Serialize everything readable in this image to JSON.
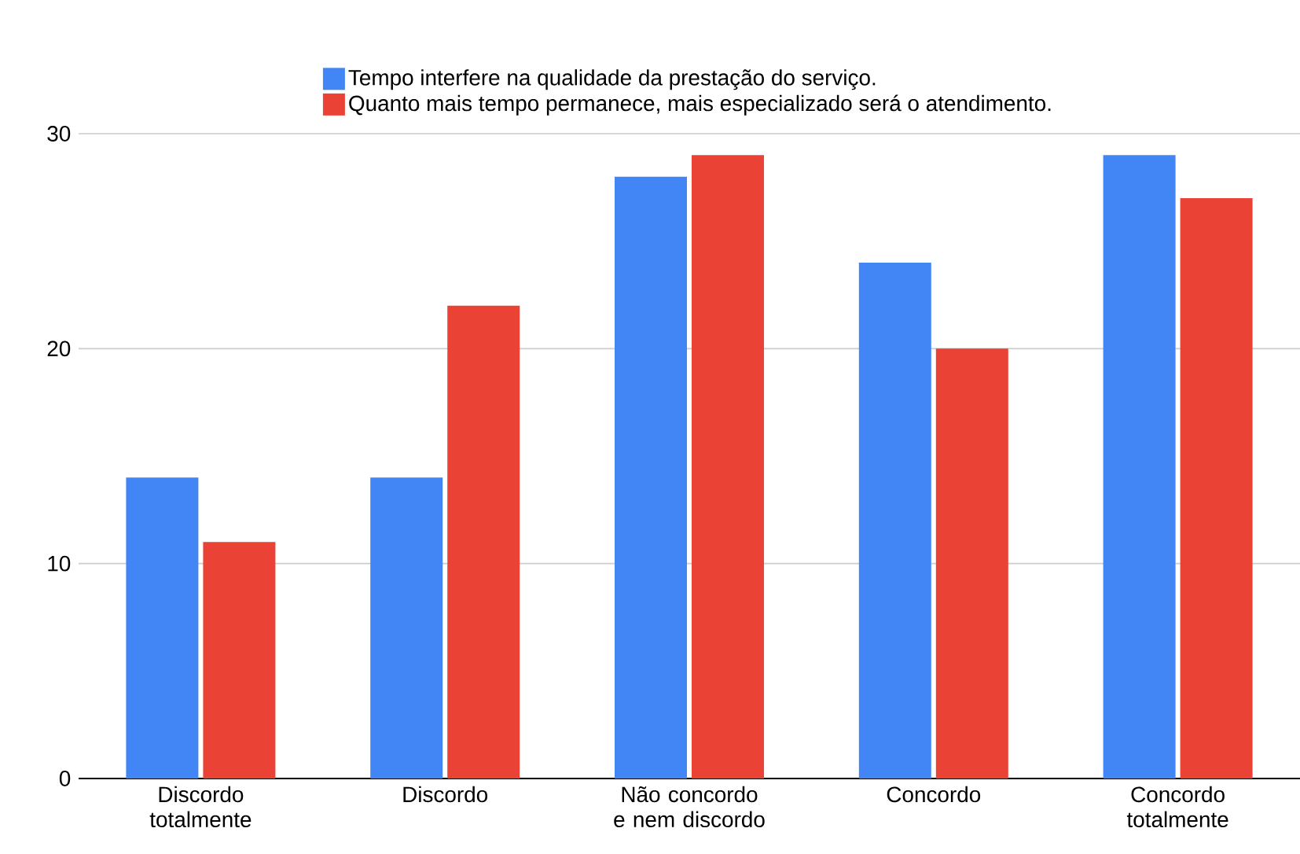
{
  "chart_data": {
    "type": "bar",
    "categories": [
      "Discordo totalmente",
      "Discordo",
      "Não concordo e nem discordo",
      "Concordo",
      "Concordo totalmente"
    ],
    "series": [
      {
        "name": "Tempo interfere na qualidade da prestação do serviço.",
        "color": "#4285f4",
        "values": [
          14,
          14,
          28,
          24,
          29
        ]
      },
      {
        "name": "Quanto mais tempo permanece, mais especializado será o atendimento.",
        "color": "#ea4335",
        "values": [
          11,
          22,
          29,
          20,
          27
        ]
      }
    ],
    "ylim": [
      0,
      30
    ],
    "yticks": [
      0,
      10,
      20,
      30
    ],
    "grid": "y",
    "legend": "top"
  }
}
